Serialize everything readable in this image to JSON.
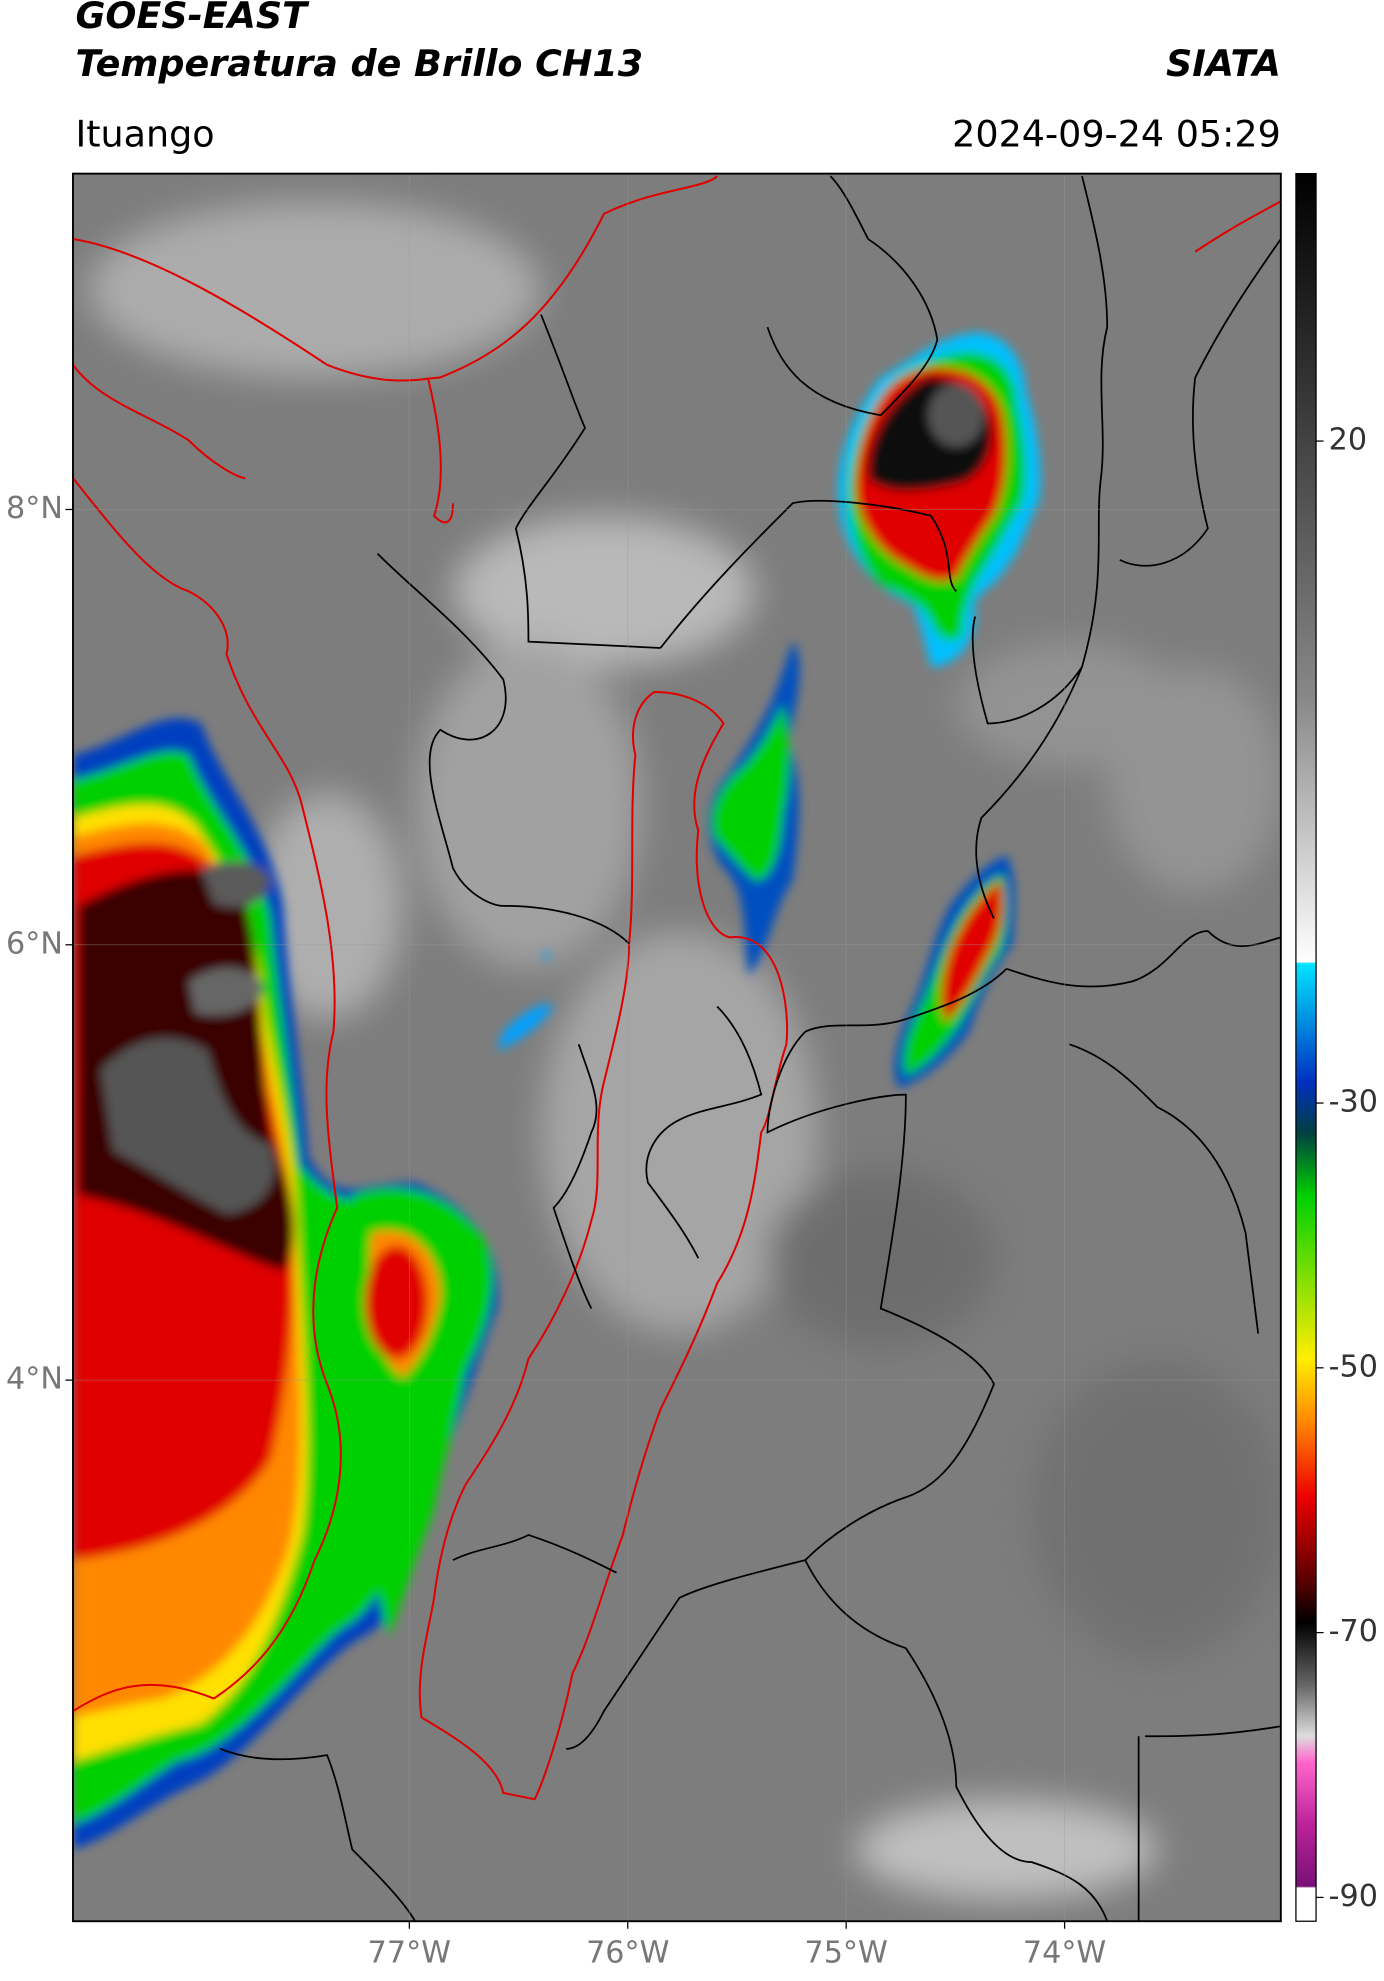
{
  "header": {
    "satellite": "GOES-EAST",
    "product": "Temperatura de Brillo CH13",
    "source": "SIATA",
    "region": "Ituango",
    "datetime": "2024-09-24 05:29"
  },
  "map": {
    "xlim": [
      -78.54,
      -73.01
    ],
    "ylim": [
      1.514,
      9.543
    ],
    "xticks": [
      {
        "value": -77,
        "label": "77°W"
      },
      {
        "value": -76,
        "label": "76°W"
      },
      {
        "value": -75,
        "label": "75°W"
      },
      {
        "value": -74,
        "label": "74°W"
      }
    ],
    "yticks": [
      {
        "value": 8,
        "label": "8°N"
      },
      {
        "value": 6,
        "label": "6°N"
      },
      {
        "value": 4,
        "label": "4°N"
      }
    ],
    "grid": true
  },
  "colorbar": {
    "clim": [
      -91.8,
      40.2
    ],
    "ticks": [
      20,
      -30,
      -50,
      -70,
      -90
    ]
  }
}
